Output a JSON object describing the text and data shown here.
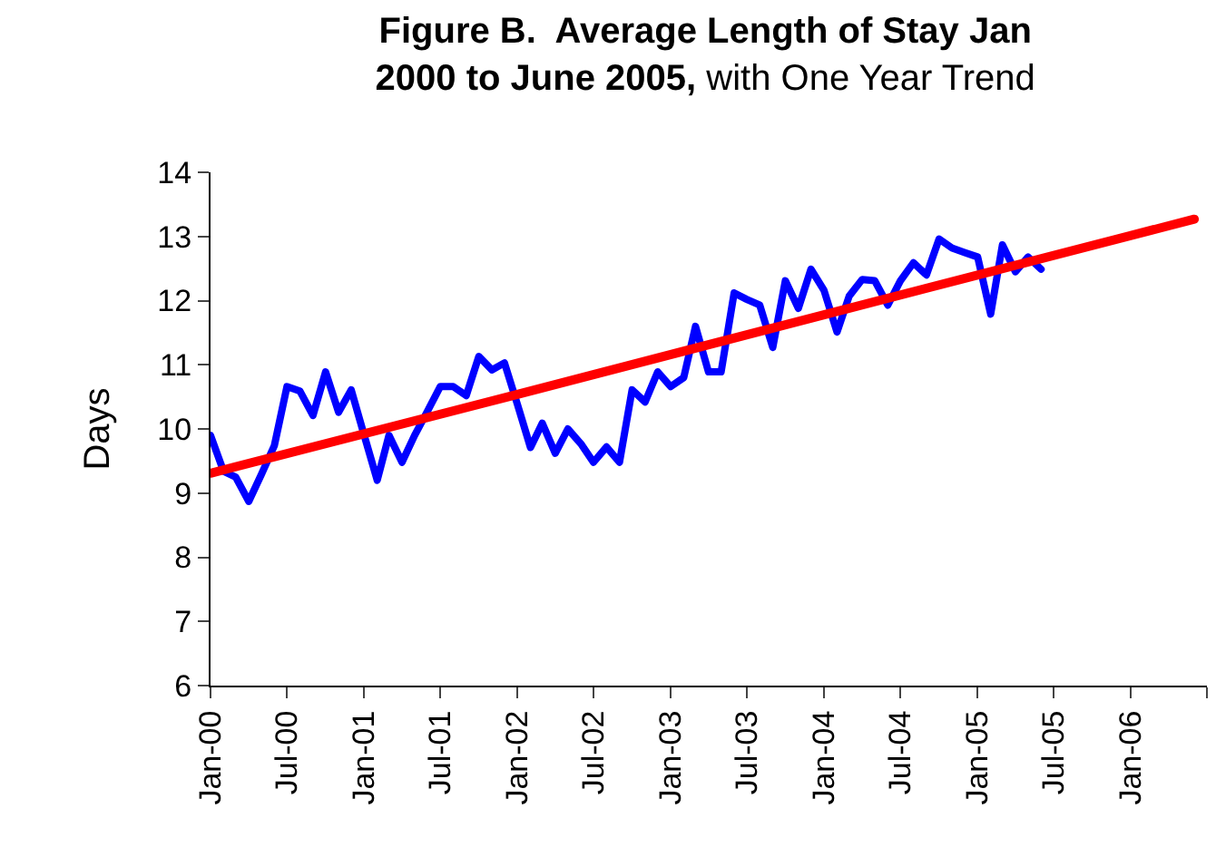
{
  "chart_data": {
    "type": "line",
    "title": "Figure B.  Average Length of Stay Jan 2000 to June 2005, with One Year Trend",
    "ylabel": "Days",
    "x": [
      "2000-01",
      "2000-02",
      "2000-03",
      "2000-04",
      "2000-05",
      "2000-06",
      "2000-07",
      "2000-08",
      "2000-09",
      "2000-10",
      "2000-11",
      "2000-12",
      "2001-01",
      "2001-02",
      "2001-03",
      "2001-04",
      "2001-05",
      "2001-06",
      "2001-07",
      "2001-08",
      "2001-09",
      "2001-10",
      "2001-11",
      "2001-12",
      "2002-01",
      "2002-02",
      "2002-03",
      "2002-04",
      "2002-05",
      "2002-06",
      "2002-07",
      "2002-08",
      "2002-09",
      "2002-10",
      "2002-11",
      "2002-12",
      "2003-01",
      "2003-02",
      "2003-03",
      "2003-04",
      "2003-05",
      "2003-06",
      "2003-07",
      "2003-08",
      "2003-09",
      "2003-10",
      "2003-11",
      "2003-12",
      "2004-01",
      "2004-02",
      "2004-03",
      "2004-04",
      "2004-05",
      "2004-06",
      "2004-07",
      "2004-08",
      "2004-09",
      "2004-10",
      "2004-11",
      "2004-12",
      "2005-01",
      "2005-02",
      "2005-03",
      "2005-04",
      "2005-05",
      "2005-06"
    ],
    "series": [
      {
        "color": "#0000ff",
        "values": [
          9.9,
          9.34,
          9.25,
          8.87,
          9.29,
          9.74,
          10.66,
          10.59,
          10.21,
          10.89,
          10.26,
          10.61,
          9.9,
          9.2,
          9.9,
          9.48,
          9.9,
          10.28,
          10.66,
          10.66,
          10.52,
          11.13,
          10.92,
          11.03,
          10.38,
          9.71,
          10.09,
          9.62,
          10.0,
          9.77,
          9.48,
          9.72,
          9.48,
          10.61,
          10.42,
          10.89,
          10.66,
          10.8,
          11.6,
          10.89,
          10.89,
          12.12,
          12.02,
          11.93,
          11.27,
          12.31,
          11.88,
          12.49,
          12.16,
          11.51,
          12.07,
          12.33,
          12.31,
          11.93,
          12.31,
          12.59,
          12.4,
          12.96,
          12.82,
          12.75,
          12.68,
          11.79,
          12.87,
          12.45,
          12.68,
          12.49
        ]
      },
      {
        "color": "#ff0000",
        "x": [
          "2000-01",
          "2002-01",
          "2004-01",
          "2006-06"
        ],
        "values": [
          9.31,
          10.54,
          11.78,
          13.27
        ]
      }
    ],
    "xlim": [
      "2000-01",
      "2006-07"
    ],
    "xticks": [
      {
        "value": "2000-01",
        "label": "Jan-00"
      },
      {
        "value": "2000-07",
        "label": "Jul-00"
      },
      {
        "value": "2001-01",
        "label": "Jan-01"
      },
      {
        "value": "2001-07",
        "label": "Jul-01"
      },
      {
        "value": "2002-01",
        "label": "Jan-02"
      },
      {
        "value": "2002-07",
        "label": "Jul-02"
      },
      {
        "value": "2003-01",
        "label": "Jan-03"
      },
      {
        "value": "2003-07",
        "label": "Jul-03"
      },
      {
        "value": "2004-01",
        "label": "Jan-04"
      },
      {
        "value": "2004-07",
        "label": "Jul-04"
      },
      {
        "value": "2005-01",
        "label": "Jan-05"
      },
      {
        "value": "2005-07",
        "label": "Jul-05"
      },
      {
        "value": "2006-01",
        "label": "Jan-06"
      },
      {
        "value": "2006-07",
        "label": null
      }
    ],
    "ylim": [
      6,
      14
    ],
    "yticks": [
      6,
      7,
      8,
      9,
      10,
      11,
      12,
      13,
      14
    ],
    "marker": "none",
    "line_style": "solid"
  }
}
